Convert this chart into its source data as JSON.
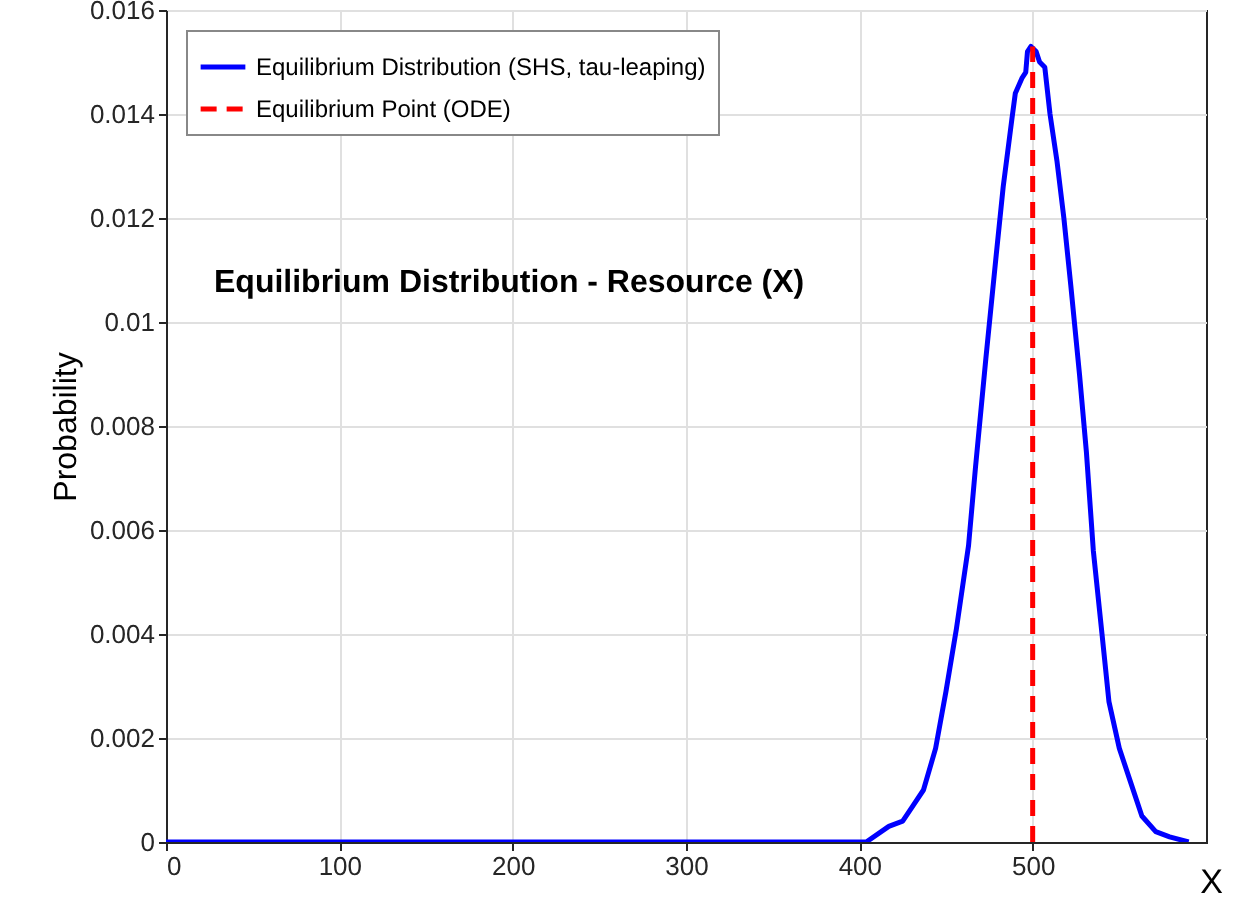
{
  "chart_data": {
    "type": "line",
    "title": "Equilibrium Distribution - Resource (X)",
    "xlabel": "X",
    "ylabel": "Probability",
    "xlim": [
      0,
      600
    ],
    "xticks": [
      0,
      100,
      200,
      300,
      400,
      500
    ],
    "ylim": [
      0,
      0.016
    ],
    "yticks": [
      0,
      0.002,
      0.004,
      0.006,
      0.008,
      0.01,
      0.012,
      0.014,
      0.016
    ],
    "grid": true,
    "legend": "top left",
    "series": [
      {
        "name": "Equilibrium Distribution (SHS, tau-leaping)",
        "color": "#0000ff",
        "line_style": "solid",
        "x": [
          0,
          100,
          200,
          300,
          400,
          404,
          417,
          425,
          431,
          437,
          444,
          450,
          456,
          463,
          467,
          473,
          479,
          483,
          488,
          490,
          494,
          496,
          497,
          499,
          502,
          504,
          507,
          510,
          514,
          518,
          522,
          527,
          531,
          535,
          540,
          544,
          550,
          556,
          563,
          571,
          579,
          590
        ],
        "values": [
          0,
          0,
          0,
          0,
          0,
          0,
          0.0003,
          0.0004,
          0.0007,
          0.001,
          0.0018,
          0.0029,
          0.0041,
          0.0057,
          0.0072,
          0.0093,
          0.0113,
          0.0126,
          0.0139,
          0.0144,
          0.0147,
          0.0148,
          0.0152,
          0.0153,
          0.0152,
          0.015,
          0.0149,
          0.014,
          0.0131,
          0.012,
          0.0107,
          0.009,
          0.0075,
          0.0056,
          0.004,
          0.0027,
          0.0018,
          0.0012,
          0.0005,
          0.0002,
          0.0001,
          0
        ]
      },
      {
        "name": "Equilibrium Point (ODE)",
        "color": "#ff0000",
        "line_style": "dashed",
        "x": [
          500,
          500
        ],
        "values": [
          0,
          0.0153
        ]
      }
    ]
  }
}
